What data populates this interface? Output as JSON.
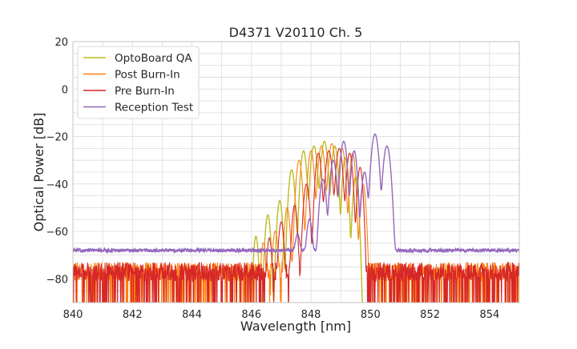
{
  "chart_data": {
    "type": "line",
    "title": "D4371 V20110 Ch. 5",
    "xlabel": "Wavelength [nm]",
    "ylabel": "Optical Power [dB]",
    "xlim": [
      840,
      855
    ],
    "ylim": [
      -90,
      20
    ],
    "xticks": [
      840,
      842,
      844,
      846,
      848,
      850,
      852,
      854
    ],
    "yticks": [
      20,
      0,
      -20,
      -40,
      -60,
      -80
    ],
    "xtick_labels": [
      "840",
      "842",
      "844",
      "846",
      "848",
      "850",
      "852",
      "854"
    ],
    "ytick_labels": [
      "20",
      "0",
      "−20",
      "−40",
      "−60",
      "−80"
    ],
    "grid": true,
    "legend_position": "top-left",
    "series": [
      {
        "name": "OptoBoard QA",
        "color": "#bcbd22",
        "noise_floor": null,
        "peaks": [
          {
            "x": 846.15,
            "y": -62,
            "w": 0.04
          },
          {
            "x": 846.55,
            "y": -53,
            "w": 0.045
          },
          {
            "x": 846.95,
            "y": -47,
            "w": 0.045
          },
          {
            "x": 847.35,
            "y": -34,
            "w": 0.05
          },
          {
            "x": 847.75,
            "y": -26,
            "w": 0.05
          },
          {
            "x": 848.1,
            "y": -24,
            "w": 0.055
          },
          {
            "x": 848.45,
            "y": -22,
            "w": 0.055
          },
          {
            "x": 848.8,
            "y": -24,
            "w": 0.05
          },
          {
            "x": 849.15,
            "y": -29,
            "w": 0.045
          },
          {
            "x": 849.5,
            "y": -37,
            "w": 0.045
          }
        ]
      },
      {
        "name": "Post Burn-In",
        "color": "#ff7f0e",
        "noise_floor": -77,
        "peaks": [
          {
            "x": 846.4,
            "y": -65,
            "w": 0.04
          },
          {
            "x": 846.8,
            "y": -60,
            "w": 0.045
          },
          {
            "x": 847.2,
            "y": -50,
            "w": 0.045
          },
          {
            "x": 847.6,
            "y": -30,
            "w": 0.05
          },
          {
            "x": 848.0,
            "y": -26,
            "w": 0.05
          },
          {
            "x": 848.35,
            "y": -24,
            "w": 0.055
          },
          {
            "x": 848.7,
            "y": -23,
            "w": 0.055
          },
          {
            "x": 849.05,
            "y": -25,
            "w": 0.05
          },
          {
            "x": 849.4,
            "y": -27,
            "w": 0.045
          },
          {
            "x": 849.75,
            "y": -40,
            "w": 0.045
          }
        ]
      },
      {
        "name": "Pre Burn-In",
        "color": "#d62728",
        "noise_floor": -77,
        "peaks": [
          {
            "x": 846.6,
            "y": -63,
            "w": 0.04
          },
          {
            "x": 847.0,
            "y": -56,
            "w": 0.045
          },
          {
            "x": 847.45,
            "y": -49,
            "w": 0.045
          },
          {
            "x": 847.85,
            "y": -40,
            "w": 0.05
          },
          {
            "x": 848.25,
            "y": -27,
            "w": 0.05
          },
          {
            "x": 848.6,
            "y": -26,
            "w": 0.055
          },
          {
            "x": 848.95,
            "y": -25,
            "w": 0.055
          },
          {
            "x": 849.3,
            "y": -27,
            "w": 0.05
          },
          {
            "x": 849.65,
            "y": -33,
            "w": 0.045
          }
        ]
      },
      {
        "name": "Reception Test",
        "color": "#9467bd",
        "noise_floor": -68,
        "peaks": [
          {
            "x": 847.55,
            "y": -62,
            "w": 0.05
          },
          {
            "x": 847.95,
            "y": -55,
            "w": 0.05
          },
          {
            "x": 848.4,
            "y": -38,
            "w": 0.055
          },
          {
            "x": 848.75,
            "y": -30,
            "w": 0.055
          },
          {
            "x": 849.1,
            "y": -22,
            "w": 0.055
          },
          {
            "x": 849.45,
            "y": -26,
            "w": 0.05
          },
          {
            "x": 849.8,
            "y": -35,
            "w": 0.05
          },
          {
            "x": 850.15,
            "y": -19,
            "w": 0.06
          },
          {
            "x": 850.55,
            "y": -24,
            "w": 0.06
          }
        ]
      }
    ]
  }
}
